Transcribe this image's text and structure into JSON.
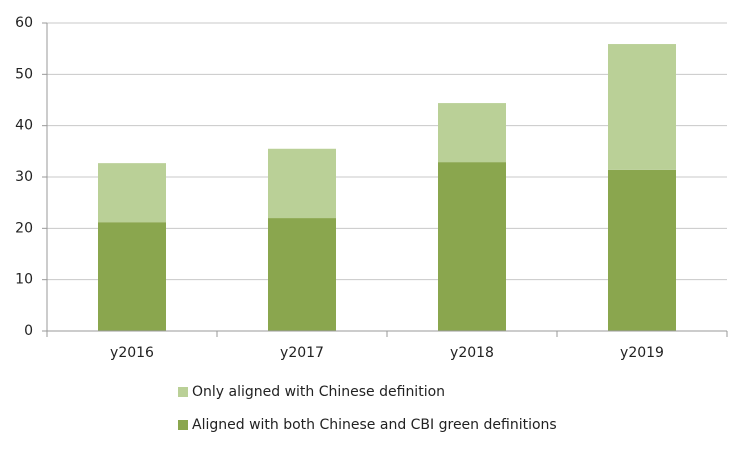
{
  "chart_data": {
    "type": "stacked-bar",
    "categories": [
      "y2016",
      "y2017",
      "y2018",
      "y2019"
    ],
    "series": [
      {
        "name": "Aligned with both Chinese and CBI green definitions",
        "color": "#8aa64e",
        "values": [
          21.2,
          22.0,
          32.9,
          31.4
        ]
      },
      {
        "name": "Only aligned with Chinese definition",
        "color": "#bad097",
        "values": [
          11.5,
          13.5,
          11.5,
          24.5
        ]
      }
    ],
    "ylim": [
      0,
      60
    ],
    "yticks": [
      0,
      10,
      20,
      30,
      40,
      50,
      60
    ],
    "grid": true
  }
}
